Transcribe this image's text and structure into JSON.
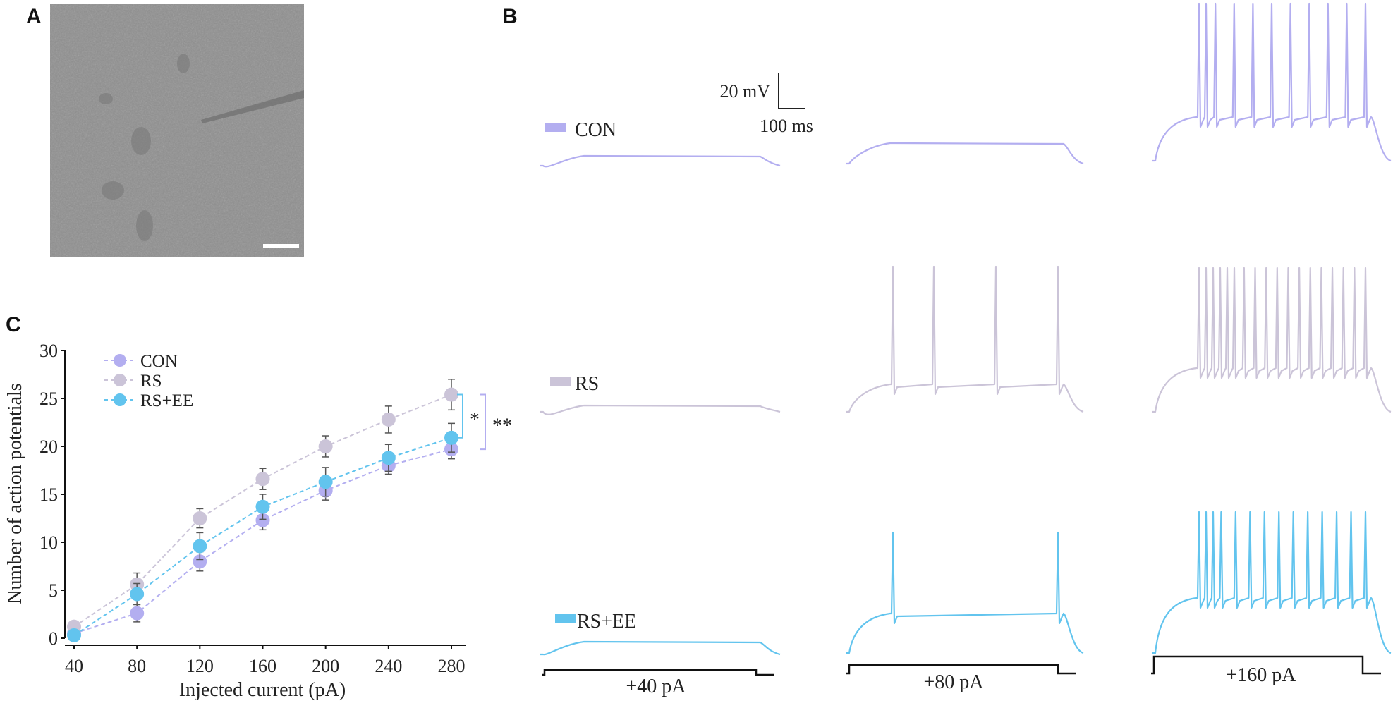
{
  "panels": {
    "a": "A",
    "b": "B",
    "c": "C"
  },
  "micrograph": {
    "background_color": "#8f8f8f"
  },
  "traces": {
    "scale_bar": {
      "voltage": "20 mV",
      "time": "100 ms"
    },
    "groups": [
      {
        "label": "CON",
        "color": "#b3aef0"
      },
      {
        "label": "RS",
        "color": "#cbc4d8"
      },
      {
        "label": "RS+EE",
        "color": "#62c4ee"
      }
    ],
    "steps": [
      "+40 pA",
      "+80 pA",
      "+160 pA"
    ],
    "spike_counts": {
      "CON": [
        0,
        0,
        11
      ],
      "RS": [
        0,
        4,
        18
      ],
      "RS+EE": [
        0,
        2,
        14
      ]
    }
  },
  "chart_data": {
    "type": "line",
    "xlabel": "Injected current (pA)",
    "ylabel": "Number of action potentials",
    "x": [
      40,
      80,
      120,
      160,
      200,
      240,
      280
    ],
    "ylim": [
      0,
      30
    ],
    "yticks": [
      0,
      5,
      10,
      15,
      20,
      25,
      30
    ],
    "legend_position": "top-left",
    "series": [
      {
        "name": "CON",
        "color": "#b3aef0",
        "values": [
          0.5,
          2.6,
          8.0,
          12.3,
          15.4,
          18.0,
          19.7
        ],
        "errors": [
          0.6,
          0.9,
          1.0,
          1.0,
          1.0,
          0.9,
          1.0
        ]
      },
      {
        "name": "RS",
        "color": "#cbc4d8",
        "values": [
          1.2,
          5.6,
          12.5,
          16.6,
          20.0,
          22.8,
          25.4
        ],
        "errors": [
          0.5,
          1.2,
          1.0,
          1.1,
          1.1,
          1.4,
          1.6
        ]
      },
      {
        "name": "RS+EE",
        "color": "#62c4ee",
        "values": [
          0.3,
          4.6,
          9.6,
          13.7,
          16.3,
          18.8,
          20.9
        ],
        "errors": [
          0.4,
          1.1,
          1.4,
          1.3,
          1.5,
          1.4,
          1.5
        ]
      }
    ],
    "significance": [
      {
        "label": "*",
        "between": [
          "RS",
          "RS+EE"
        ],
        "color": "#62c4ee"
      },
      {
        "label": "**",
        "between": [
          "RS",
          "CON"
        ],
        "color": "#b3aef0"
      }
    ]
  }
}
